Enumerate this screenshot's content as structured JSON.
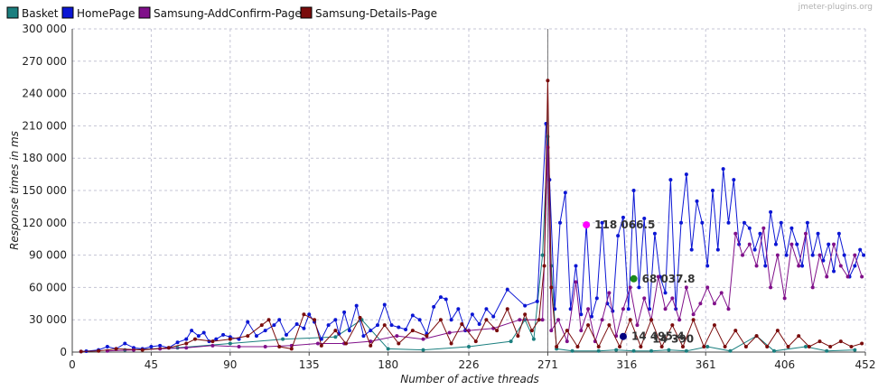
{
  "watermark": "jmeter-plugins.org",
  "colors": {
    "Basket": "#1b7f7f",
    "HomePage": "#0b16d4",
    "Samsung-AddConfirm-Page": "#80108a",
    "Samsung-Details-Page": "#7a0c0c"
  },
  "callouts": [
    {
      "text": "118 066.5",
      "x": 293,
      "y": 118066,
      "color": "#ff00ff"
    },
    {
      "text": "68 037.8",
      "x": 320,
      "y": 68038,
      "color": "#1a8a1a"
    },
    {
      "text": "14 495.4",
      "x": 314,
      "y": 14495,
      "color": "#000080"
    },
    {
      "text": "14 390",
      "x": 326,
      "y": 12000,
      "color": "none"
    }
  ],
  "chart_data": {
    "type": "line",
    "title": "",
    "xlabel": "Number of active threads",
    "ylabel": "Response times in ms",
    "xlim": [
      0,
      452
    ],
    "ylim": [
      0,
      300000
    ],
    "x_ticks": [
      0,
      45,
      90,
      135,
      180,
      226,
      271,
      316,
      361,
      406,
      452
    ],
    "x_tick_labels": [
      "0",
      "45",
      "90",
      "135",
      "180",
      "226",
      "271",
      "316",
      "361",
      "406",
      "452"
    ],
    "y_ticks": [
      0,
      30000,
      60000,
      90000,
      120000,
      150000,
      180000,
      210000,
      240000,
      270000,
      300000
    ],
    "y_tick_labels": [
      "0",
      "30 000",
      "60 000",
      "90 000",
      "120 000",
      "150 000",
      "180 000",
      "210 000",
      "240 000",
      "270 000",
      "300 000"
    ],
    "grid": true,
    "legend_position": "top-left",
    "series": [
      {
        "name": "Basket",
        "points": [
          [
            30,
            2000
          ],
          [
            60,
            4000
          ],
          [
            90,
            8000
          ],
          [
            120,
            12000
          ],
          [
            150,
            14000
          ],
          [
            165,
            30000
          ],
          [
            180,
            3000
          ],
          [
            200,
            2000
          ],
          [
            226,
            5000
          ],
          [
            250,
            10000
          ],
          [
            258,
            30000
          ],
          [
            263,
            12000
          ],
          [
            268,
            90000
          ],
          [
            271,
            200000
          ],
          [
            273,
            80000
          ],
          [
            276,
            3000
          ],
          [
            285,
            1000
          ],
          [
            300,
            1000
          ],
          [
            310,
            2000
          ],
          [
            320,
            1000
          ],
          [
            330,
            1000
          ],
          [
            340,
            2000
          ],
          [
            350,
            1000
          ],
          [
            362,
            5000
          ],
          [
            375,
            1000
          ],
          [
            390,
            15000
          ],
          [
            400,
            1000
          ],
          [
            418,
            5000
          ],
          [
            430,
            1000
          ],
          [
            446,
            2000
          ]
        ]
      },
      {
        "name": "HomePage",
        "points": [
          [
            5,
            500
          ],
          [
            8,
            800
          ],
          [
            15,
            2000
          ],
          [
            20,
            5000
          ],
          [
            25,
            3000
          ],
          [
            30,
            8000
          ],
          [
            35,
            4000
          ],
          [
            40,
            3000
          ],
          [
            45,
            5000
          ],
          [
            50,
            6000
          ],
          [
            55,
            4000
          ],
          [
            60,
            9000
          ],
          [
            65,
            12000
          ],
          [
            68,
            20000
          ],
          [
            72,
            15000
          ],
          [
            75,
            18000
          ],
          [
            78,
            10000
          ],
          [
            82,
            12000
          ],
          [
            86,
            16000
          ],
          [
            90,
            14000
          ],
          [
            95,
            12000
          ],
          [
            100,
            28000
          ],
          [
            105,
            15000
          ],
          [
            110,
            20000
          ],
          [
            115,
            25000
          ],
          [
            118,
            30000
          ],
          [
            122,
            16000
          ],
          [
            128,
            26000
          ],
          [
            132,
            22000
          ],
          [
            135,
            35000
          ],
          [
            138,
            28000
          ],
          [
            142,
            12000
          ],
          [
            146,
            25000
          ],
          [
            150,
            30000
          ],
          [
            152,
            17000
          ],
          [
            155,
            37000
          ],
          [
            158,
            20000
          ],
          [
            162,
            43000
          ],
          [
            166,
            15000
          ],
          [
            170,
            20000
          ],
          [
            174,
            25000
          ],
          [
            178,
            44000
          ],
          [
            182,
            25000
          ],
          [
            186,
            23000
          ],
          [
            190,
            21000
          ],
          [
            194,
            34000
          ],
          [
            198,
            30000
          ],
          [
            202,
            17000
          ],
          [
            206,
            42000
          ],
          [
            210,
            51000
          ],
          [
            213,
            49000
          ],
          [
            216,
            30000
          ],
          [
            220,
            40000
          ],
          [
            224,
            20000
          ],
          [
            228,
            35000
          ],
          [
            232,
            26000
          ],
          [
            236,
            40000
          ],
          [
            240,
            33000
          ],
          [
            248,
            58000
          ],
          [
            258,
            43000
          ],
          [
            265,
            47000
          ],
          [
            270,
            212000
          ],
          [
            272,
            160000
          ],
          [
            275,
            40000
          ],
          [
            278,
            120000
          ],
          [
            281,
            148000
          ],
          [
            284,
            40000
          ],
          [
            287,
            80000
          ],
          [
            290,
            35000
          ],
          [
            293,
            118066
          ],
          [
            296,
            33000
          ],
          [
            299,
            50000
          ],
          [
            302,
            120000
          ],
          [
            305,
            45000
          ],
          [
            308,
            38000
          ],
          [
            311,
            108000
          ],
          [
            314,
            125000
          ],
          [
            317,
            40000
          ],
          [
            320,
            150000
          ],
          [
            323,
            60000
          ],
          [
            326,
            124000
          ],
          [
            329,
            40000
          ],
          [
            332,
            110000
          ],
          [
            335,
            70000
          ],
          [
            338,
            55000
          ],
          [
            341,
            160000
          ],
          [
            344,
            40000
          ],
          [
            347,
            120000
          ],
          [
            350,
            165000
          ],
          [
            353,
            95000
          ],
          [
            356,
            140000
          ],
          [
            359,
            120000
          ],
          [
            362,
            80000
          ],
          [
            365,
            150000
          ],
          [
            368,
            95000
          ],
          [
            371,
            170000
          ],
          [
            374,
            120000
          ],
          [
            377,
            160000
          ],
          [
            380,
            100000
          ],
          [
            383,
            120000
          ],
          [
            386,
            115000
          ],
          [
            389,
            95000
          ],
          [
            392,
            110000
          ],
          [
            395,
            80000
          ],
          [
            398,
            130000
          ],
          [
            401,
            100000
          ],
          [
            404,
            120000
          ],
          [
            407,
            90000
          ],
          [
            410,
            115000
          ],
          [
            413,
            100000
          ],
          [
            416,
            80000
          ],
          [
            419,
            120000
          ],
          [
            422,
            90000
          ],
          [
            425,
            110000
          ],
          [
            428,
            85000
          ],
          [
            431,
            100000
          ],
          [
            434,
            75000
          ],
          [
            437,
            110000
          ],
          [
            440,
            90000
          ],
          [
            443,
            70000
          ],
          [
            446,
            80000
          ],
          [
            449,
            95000
          ],
          [
            451,
            90000
          ]
        ]
      },
      {
        "name": "Samsung-AddConfirm-Page",
        "points": [
          [
            20,
            1000
          ],
          [
            35,
            2000
          ],
          [
            50,
            3000
          ],
          [
            65,
            4000
          ],
          [
            80,
            6000
          ],
          [
            95,
            5000
          ],
          [
            110,
            5000
          ],
          [
            125,
            6000
          ],
          [
            140,
            8000
          ],
          [
            155,
            8000
          ],
          [
            170,
            10000
          ],
          [
            185,
            15000
          ],
          [
            200,
            12000
          ],
          [
            215,
            18000
          ],
          [
            226,
            20000
          ],
          [
            240,
            22000
          ],
          [
            255,
            30000
          ],
          [
            268,
            30000
          ],
          [
            271,
            190000
          ],
          [
            273,
            20000
          ],
          [
            277,
            30000
          ],
          [
            282,
            10000
          ],
          [
            287,
            65000
          ],
          [
            290,
            20000
          ],
          [
            294,
            40000
          ],
          [
            298,
            10000
          ],
          [
            302,
            30000
          ],
          [
            306,
            55000
          ],
          [
            310,
            15000
          ],
          [
            314,
            40000
          ],
          [
            318,
            60000
          ],
          [
            322,
            25000
          ],
          [
            326,
            50000
          ],
          [
            330,
            30000
          ],
          [
            334,
            70000
          ],
          [
            338,
            40000
          ],
          [
            342,
            50000
          ],
          [
            346,
            30000
          ],
          [
            350,
            60000
          ],
          [
            354,
            35000
          ],
          [
            358,
            45000
          ],
          [
            362,
            60000
          ],
          [
            366,
            45000
          ],
          [
            370,
            55000
          ],
          [
            374,
            40000
          ],
          [
            378,
            110000
          ],
          [
            382,
            90000
          ],
          [
            386,
            100000
          ],
          [
            390,
            80000
          ],
          [
            394,
            115000
          ],
          [
            398,
            60000
          ],
          [
            402,
            90000
          ],
          [
            406,
            50000
          ],
          [
            410,
            100000
          ],
          [
            414,
            80000
          ],
          [
            418,
            110000
          ],
          [
            422,
            60000
          ],
          [
            426,
            90000
          ],
          [
            430,
            70000
          ],
          [
            434,
            100000
          ],
          [
            438,
            80000
          ],
          [
            442,
            70000
          ],
          [
            446,
            90000
          ],
          [
            450,
            70000
          ]
        ]
      },
      {
        "name": "Samsung-Details-Page",
        "points": [
          [
            5,
            500
          ],
          [
            15,
            1000
          ],
          [
            25,
            3000
          ],
          [
            40,
            2000
          ],
          [
            55,
            4000
          ],
          [
            65,
            8000
          ],
          [
            70,
            12000
          ],
          [
            80,
            10000
          ],
          [
            90,
            12000
          ],
          [
            100,
            15000
          ],
          [
            108,
            25000
          ],
          [
            112,
            30000
          ],
          [
            118,
            5000
          ],
          [
            125,
            3000
          ],
          [
            132,
            35000
          ],
          [
            138,
            30000
          ],
          [
            142,
            6000
          ],
          [
            150,
            20000
          ],
          [
            156,
            8000
          ],
          [
            164,
            32000
          ],
          [
            170,
            6000
          ],
          [
            178,
            25000
          ],
          [
            186,
            8000
          ],
          [
            194,
            20000
          ],
          [
            202,
            15000
          ],
          [
            210,
            30000
          ],
          [
            216,
            8000
          ],
          [
            222,
            26000
          ],
          [
            230,
            10000
          ],
          [
            236,
            30000
          ],
          [
            242,
            20000
          ],
          [
            248,
            40000
          ],
          [
            254,
            15000
          ],
          [
            258,
            35000
          ],
          [
            262,
            20000
          ],
          [
            266,
            30000
          ],
          [
            269,
            80000
          ],
          [
            271,
            252000
          ],
          [
            273,
            60000
          ],
          [
            276,
            5000
          ],
          [
            282,
            20000
          ],
          [
            288,
            5000
          ],
          [
            294,
            25000
          ],
          [
            300,
            5000
          ],
          [
            306,
            25000
          ],
          [
            312,
            5000
          ],
          [
            318,
            30000
          ],
          [
            324,
            5000
          ],
          [
            330,
            30000
          ],
          [
            336,
            5000
          ],
          [
            342,
            25000
          ],
          [
            348,
            5000
          ],
          [
            354,
            30000
          ],
          [
            360,
            5000
          ],
          [
            366,
            25000
          ],
          [
            372,
            5000
          ],
          [
            378,
            20000
          ],
          [
            384,
            5000
          ],
          [
            390,
            15000
          ],
          [
            396,
            5000
          ],
          [
            402,
            20000
          ],
          [
            408,
            5000
          ],
          [
            414,
            15000
          ],
          [
            420,
            5000
          ],
          [
            426,
            10000
          ],
          [
            432,
            5000
          ],
          [
            438,
            10000
          ],
          [
            444,
            5000
          ],
          [
            450,
            8000
          ]
        ]
      }
    ]
  }
}
